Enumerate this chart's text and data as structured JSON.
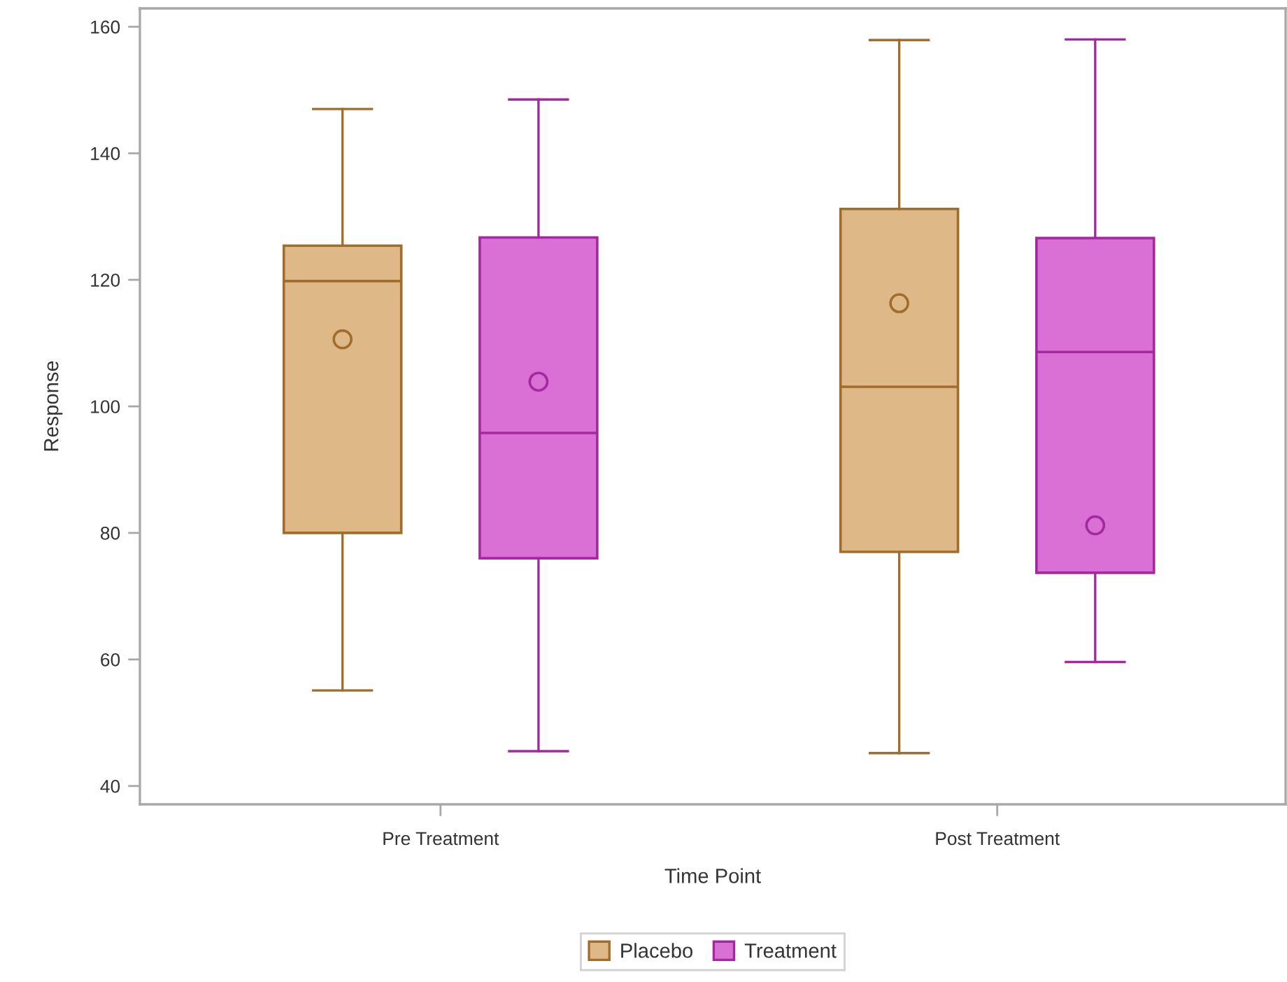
{
  "chart_data": {
    "type": "box",
    "categories": [
      "Pre Treatment",
      "Post Treatment"
    ],
    "xlabel": "Time Point",
    "ylabel": "Response",
    "ylim": [
      37.1,
      162.9
    ],
    "yticks": [
      40,
      60,
      80,
      100,
      120,
      140,
      160
    ],
    "grid": false,
    "legend": "bottom",
    "series": [
      {
        "name": "Placebo",
        "color": "#deb887",
        "boxes": [
          {
            "low": 55.1,
            "q1": 80.0,
            "median": 119.8,
            "q3": 125.4,
            "high": 147.0,
            "mean": 110.6
          },
          {
            "low": 45.2,
            "q1": 77.0,
            "median": 103.1,
            "q3": 131.2,
            "high": 157.9,
            "mean": 116.3
          }
        ]
      },
      {
        "name": "Treatment",
        "color": "#da70d6",
        "boxes": [
          {
            "low": 45.5,
            "q1": 76.0,
            "median": 95.8,
            "q3": 126.7,
            "high": 148.5,
            "mean": 103.9
          },
          {
            "low": 59.6,
            "q1": 73.7,
            "median": 108.6,
            "q3": 126.6,
            "high": 158.0,
            "mean": 81.2
          }
        ]
      }
    ]
  }
}
